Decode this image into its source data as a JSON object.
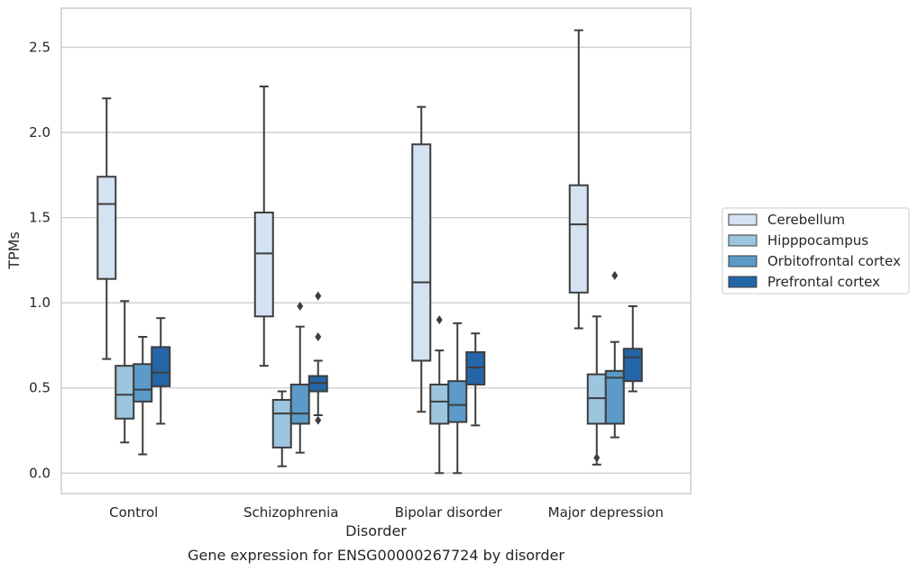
{
  "chart_data": {
    "type": "box",
    "title": "",
    "caption": "Gene expression for ENSG00000267724 by disorder",
    "xlabel": "Disorder",
    "ylabel": "TPMs",
    "ylim": [
      -0.12,
      2.73
    ],
    "yticks": [
      0.0,
      0.5,
      1.0,
      1.5,
      2.0,
      2.5
    ],
    "ytick_labels": [
      "0.0",
      "0.5",
      "1.0",
      "1.5",
      "2.0",
      "2.5"
    ],
    "grid": "horizontal",
    "legend_position": "right",
    "categories": [
      "Control",
      "Schizophrenia",
      "Bipolar disorder",
      "Major depression"
    ],
    "series": [
      {
        "name": "Cerebellum",
        "color": "#d4e3f2",
        "boxes": [
          {
            "whisker_low": 0.67,
            "q1": 1.14,
            "median": 1.58,
            "q3": 1.74,
            "whisker_high": 2.2,
            "outliers": []
          },
          {
            "whisker_low": 0.63,
            "q1": 0.92,
            "median": 1.29,
            "q3": 1.53,
            "whisker_high": 2.27,
            "outliers": []
          },
          {
            "whisker_low": 0.36,
            "q1": 0.66,
            "median": 1.12,
            "q3": 1.93,
            "whisker_high": 2.15,
            "outliers": []
          },
          {
            "whisker_low": 0.85,
            "q1": 1.06,
            "median": 1.46,
            "q3": 1.69,
            "whisker_high": 2.6,
            "outliers": []
          }
        ]
      },
      {
        "name": "Hipppocampus",
        "color": "#9cc5e0",
        "boxes": [
          {
            "whisker_low": 0.18,
            "q1": 0.32,
            "median": 0.46,
            "q3": 0.63,
            "whisker_high": 1.01,
            "outliers": []
          },
          {
            "whisker_low": 0.04,
            "q1": 0.15,
            "median": 0.35,
            "q3": 0.43,
            "whisker_high": 0.48,
            "outliers": []
          },
          {
            "whisker_low": 0.0,
            "q1": 0.29,
            "median": 0.42,
            "q3": 0.52,
            "whisker_high": 0.72,
            "outliers": [
              0.9
            ]
          },
          {
            "whisker_low": 0.05,
            "q1": 0.29,
            "median": 0.44,
            "q3": 0.58,
            "whisker_high": 0.92,
            "outliers": [
              0.09
            ]
          }
        ]
      },
      {
        "name": "Orbitofrontal cortex",
        "color": "#5b9ac9",
        "boxes": [
          {
            "whisker_low": 0.11,
            "q1": 0.42,
            "median": 0.49,
            "q3": 0.64,
            "whisker_high": 0.8,
            "outliers": []
          },
          {
            "whisker_low": 0.12,
            "q1": 0.29,
            "median": 0.35,
            "q3": 0.52,
            "whisker_high": 0.86,
            "outliers": [
              0.98
            ]
          },
          {
            "whisker_low": 0.0,
            "q1": 0.3,
            "median": 0.4,
            "q3": 0.54,
            "whisker_high": 0.88,
            "outliers": []
          },
          {
            "whisker_low": 0.21,
            "q1": 0.29,
            "median": 0.56,
            "q3": 0.6,
            "whisker_high": 0.77,
            "outliers": [
              1.16
            ]
          }
        ]
      },
      {
        "name": "Prefrontal cortex",
        "color": "#2466a8",
        "boxes": [
          {
            "whisker_low": 0.29,
            "q1": 0.51,
            "median": 0.59,
            "q3": 0.74,
            "whisker_high": 0.91,
            "outliers": []
          },
          {
            "whisker_low": 0.34,
            "q1": 0.48,
            "median": 0.53,
            "q3": 0.57,
            "whisker_high": 0.66,
            "outliers": [
              0.31,
              0.8,
              1.04
            ]
          },
          {
            "whisker_low": 0.28,
            "q1": 0.52,
            "median": 0.62,
            "q3": 0.71,
            "whisker_high": 0.82,
            "outliers": []
          },
          {
            "whisker_low": 0.48,
            "q1": 0.54,
            "median": 0.68,
            "q3": 0.73,
            "whisker_high": 0.98,
            "outliers": []
          }
        ]
      }
    ]
  }
}
